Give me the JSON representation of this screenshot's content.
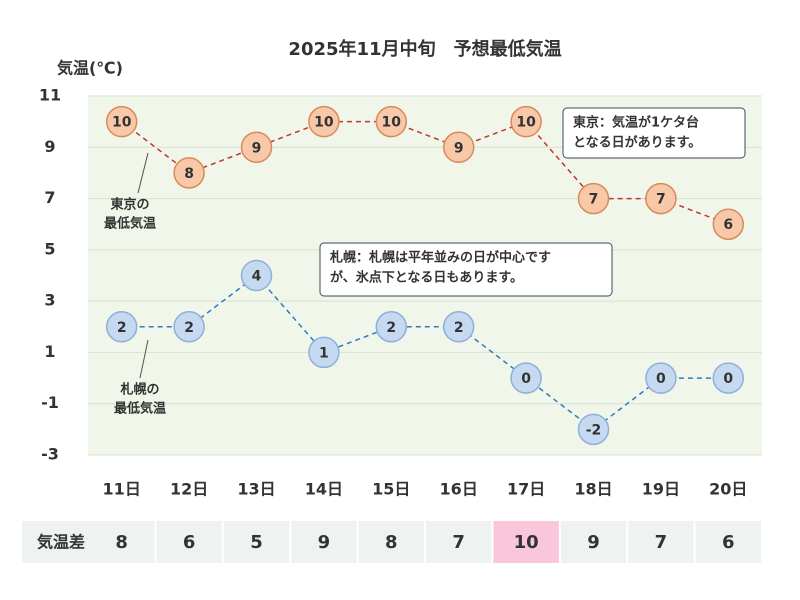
{
  "chart_data": {
    "type": "line",
    "title": "2025年11月中旬　予想最低気温",
    "y_label": "気温(℃)",
    "categories": [
      "11日",
      "12日",
      "13日",
      "14日",
      "15日",
      "16日",
      "17日",
      "18日",
      "19日",
      "20日"
    ],
    "ylim": [
      -3,
      11
    ],
    "yticks": [
      11,
      9,
      7,
      5,
      3,
      1,
      -1,
      -3
    ],
    "grid": true,
    "series": [
      {
        "name": "東京の最低気温",
        "label_lines": [
          "東京の",
          "最低気温"
        ],
        "color": "#c0392b",
        "marker_fill": "#f8c9a9",
        "marker_stroke": "#d98a5a",
        "values": [
          10,
          8,
          9,
          10,
          10,
          9,
          10,
          7,
          7,
          6
        ],
        "label_colors": [
          "#ffffff",
          "#0000ff",
          "#ffffff",
          "#ffffff",
          "#ff0000",
          "#ffffff",
          "#ff0000",
          "#0000ff",
          "#ffffff",
          "#0000ff"
        ]
      },
      {
        "name": "札幌の最低気温",
        "label_lines": [
          "札幌の",
          "最低気温"
        ],
        "color": "#2e7bbf",
        "marker_fill": "#c5d9f0",
        "marker_stroke": "#8fb0d8",
        "values": [
          2,
          2,
          4,
          1,
          2,
          2,
          0,
          -2,
          0,
          0
        ],
        "label_colors": [
          "#ffffff",
          "#ffffff",
          "#ff0000",
          "#ffffff",
          "#ffffff",
          "#ffffff",
          "#ffffff",
          "#0000ff",
          "#ffffff",
          "#ffffff"
        ]
      }
    ],
    "annotations": [
      [
        "東京：気温が1ケタ台",
        "となる日があります。"
      ],
      [
        "札幌：札幌は平年並みの日が中心です",
        "が、氷点下となる日もあります。"
      ]
    ],
    "difference": {
      "label": "気温差",
      "values": [
        8,
        6,
        5,
        9,
        8,
        7,
        10,
        9,
        7,
        6
      ],
      "cell_colors": [
        "#eef3f1",
        "#eef3f1",
        "#eef3f1",
        "#eef3f1",
        "#eef3f1",
        "#eef3f1",
        "#f9c6dc",
        "#eef3f1",
        "#eef3f1",
        "#eef3f1"
      ]
    }
  }
}
